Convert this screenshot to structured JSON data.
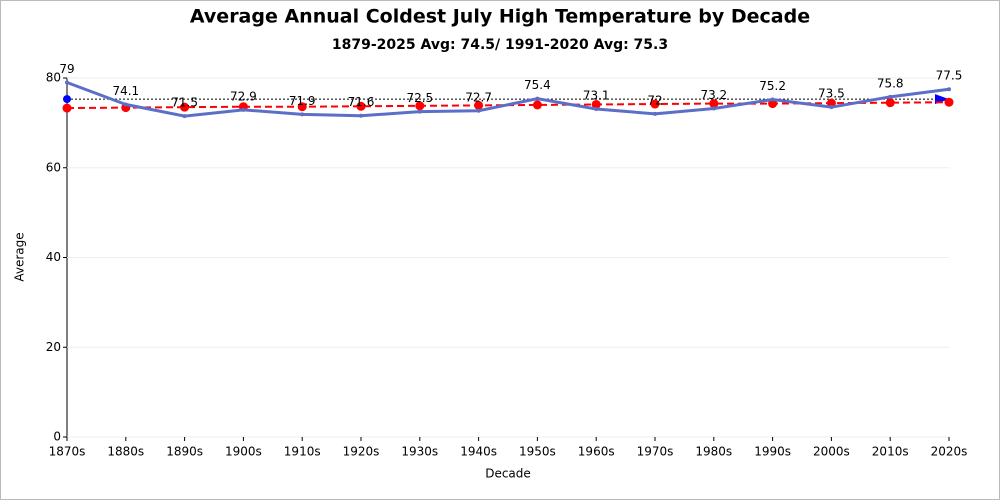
{
  "chart_data": {
    "type": "line",
    "title": "Average Annual Coldest July High Temperature by Decade",
    "subtitle": "1879-2025 Avg: 74.5/ 1991-2020 Avg: 75.3",
    "x_label": "Decade",
    "y_label": "Average",
    "categories": [
      "1870s",
      "1880s",
      "1890s",
      "1900s",
      "1910s",
      "1920s",
      "1930s",
      "1940s",
      "1950s",
      "1960s",
      "1970s",
      "1980s",
      "1990s",
      "2000s",
      "2010s",
      "2020s"
    ],
    "series": [
      {
        "color": "#5b6fc9",
        "values": [
          79,
          74.1,
          71.5,
          72.9,
          71.9,
          71.6,
          72.5,
          72.7,
          75.4,
          73.1,
          72,
          73.2,
          75.2,
          73.5,
          75.8,
          77.5
        ]
      },
      {
        "color": "#ff0000",
        "dashed": true,
        "values": [
          73.3,
          73.4,
          73.5,
          73.6,
          73.6,
          73.7,
          73.8,
          73.9,
          74.0,
          74.1,
          74.2,
          74.3,
          74.3,
          74.4,
          74.5,
          74.6
        ]
      }
    ],
    "reference_line": {
      "value": 75.3,
      "color": "#0000ff"
    },
    "ylim": [
      0,
      80
    ],
    "yticks": [
      0,
      20,
      40,
      60,
      80
    ],
    "grid": true
  }
}
